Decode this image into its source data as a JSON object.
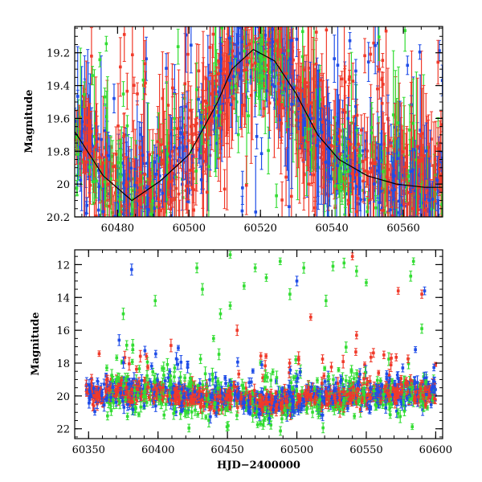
{
  "chart_data": [
    {
      "type": "scatter",
      "title": "",
      "xlabel": "",
      "ylabel": "Magnitude",
      "xlim": [
        60468,
        60571
      ],
      "ylim": [
        20.2,
        19.04
      ],
      "y_inverted": true,
      "xticks": [
        "60480",
        "60500",
        "60520",
        "60540",
        "60560"
      ],
      "yticks": [
        "19.2",
        "19.4",
        "19.6",
        "19.8",
        "20",
        "20.2"
      ],
      "error_bars": true,
      "series_colors": [
        "#1f4de8",
        "#33dd33",
        "#f03a2a"
      ],
      "model_curve_color": "#000000",
      "model_curve": [
        [
          60468,
          19.68
        ],
        [
          60476,
          19.95
        ],
        [
          60484,
          20.1
        ],
        [
          60492,
          19.98
        ],
        [
          60500,
          19.82
        ],
        [
          60508,
          19.5
        ],
        [
          60512,
          19.3
        ],
        [
          60518,
          19.18
        ],
        [
          60524,
          19.25
        ],
        [
          60530,
          19.45
        ],
        [
          60536,
          19.7
        ],
        [
          60542,
          19.85
        ],
        [
          60550,
          19.95
        ],
        [
          60558,
          20.0
        ],
        [
          60566,
          20.02
        ],
        [
          60571,
          20.02
        ]
      ]
    },
    {
      "type": "scatter",
      "title": "",
      "xlabel": "HJD−2400000",
      "ylabel": "Magnitude",
      "xlim": [
        60340,
        60605
      ],
      "ylim": [
        22.6,
        11.1
      ],
      "y_inverted": true,
      "xticks": [
        "60350",
        "60400",
        "60450",
        "60500",
        "60550",
        "60600"
      ],
      "yticks": [
        "12",
        "14",
        "16",
        "18",
        "20",
        "22"
      ],
      "error_bars": true,
      "series_colors": [
        "#1f4de8",
        "#33dd33",
        "#f03a2a"
      ],
      "outliers": [
        {
          "x": 60381,
          "y": 12.3,
          "c": 0
        },
        {
          "x": 60398,
          "y": 14.2,
          "c": 1
        },
        {
          "x": 60428,
          "y": 12.2,
          "c": 1
        },
        {
          "x": 60432,
          "y": 13.5,
          "c": 1
        },
        {
          "x": 60445,
          "y": 15.0,
          "c": 1
        },
        {
          "x": 60452,
          "y": 11.4,
          "c": 1
        },
        {
          "x": 60470,
          "y": 12.2,
          "c": 1
        },
        {
          "x": 60478,
          "y": 12.8,
          "c": 1
        },
        {
          "x": 60462,
          "y": 13.3,
          "c": 1
        },
        {
          "x": 60488,
          "y": 11.8,
          "c": 1
        },
        {
          "x": 60495,
          "y": 13.8,
          "c": 1
        },
        {
          "x": 60500,
          "y": 13.0,
          "c": 0
        },
        {
          "x": 60505,
          "y": 12.2,
          "c": 1
        },
        {
          "x": 60521,
          "y": 14.2,
          "c": 1
        },
        {
          "x": 60526,
          "y": 12.1,
          "c": 1
        },
        {
          "x": 60534,
          "y": 11.9,
          "c": 1
        },
        {
          "x": 60540,
          "y": 11.5,
          "c": 2
        },
        {
          "x": 60543,
          "y": 12.4,
          "c": 1
        },
        {
          "x": 60550,
          "y": 13.1,
          "c": 1
        },
        {
          "x": 60573,
          "y": 13.6,
          "c": 2
        },
        {
          "x": 60582,
          "y": 12.7,
          "c": 1
        },
        {
          "x": 60584,
          "y": 11.8,
          "c": 1
        },
        {
          "x": 60592,
          "y": 13.6,
          "c": 0
        },
        {
          "x": 60590,
          "y": 13.8,
          "c": 2
        },
        {
          "x": 60590,
          "y": 15.9,
          "c": 1
        },
        {
          "x": 60543,
          "y": 16.3,
          "c": 2
        },
        {
          "x": 60510,
          "y": 15.2,
          "c": 2
        },
        {
          "x": 60457,
          "y": 16.0,
          "c": 2
        },
        {
          "x": 60452,
          "y": 14.5,
          "c": 1
        },
        {
          "x": 60375,
          "y": 15.0,
          "c": 1
        },
        {
          "x": 60372,
          "y": 16.6,
          "c": 0
        },
        {
          "x": 60440,
          "y": 16.5,
          "c": 1
        },
        {
          "x": 60568,
          "y": 17.7,
          "c": 2
        }
      ]
    }
  ]
}
